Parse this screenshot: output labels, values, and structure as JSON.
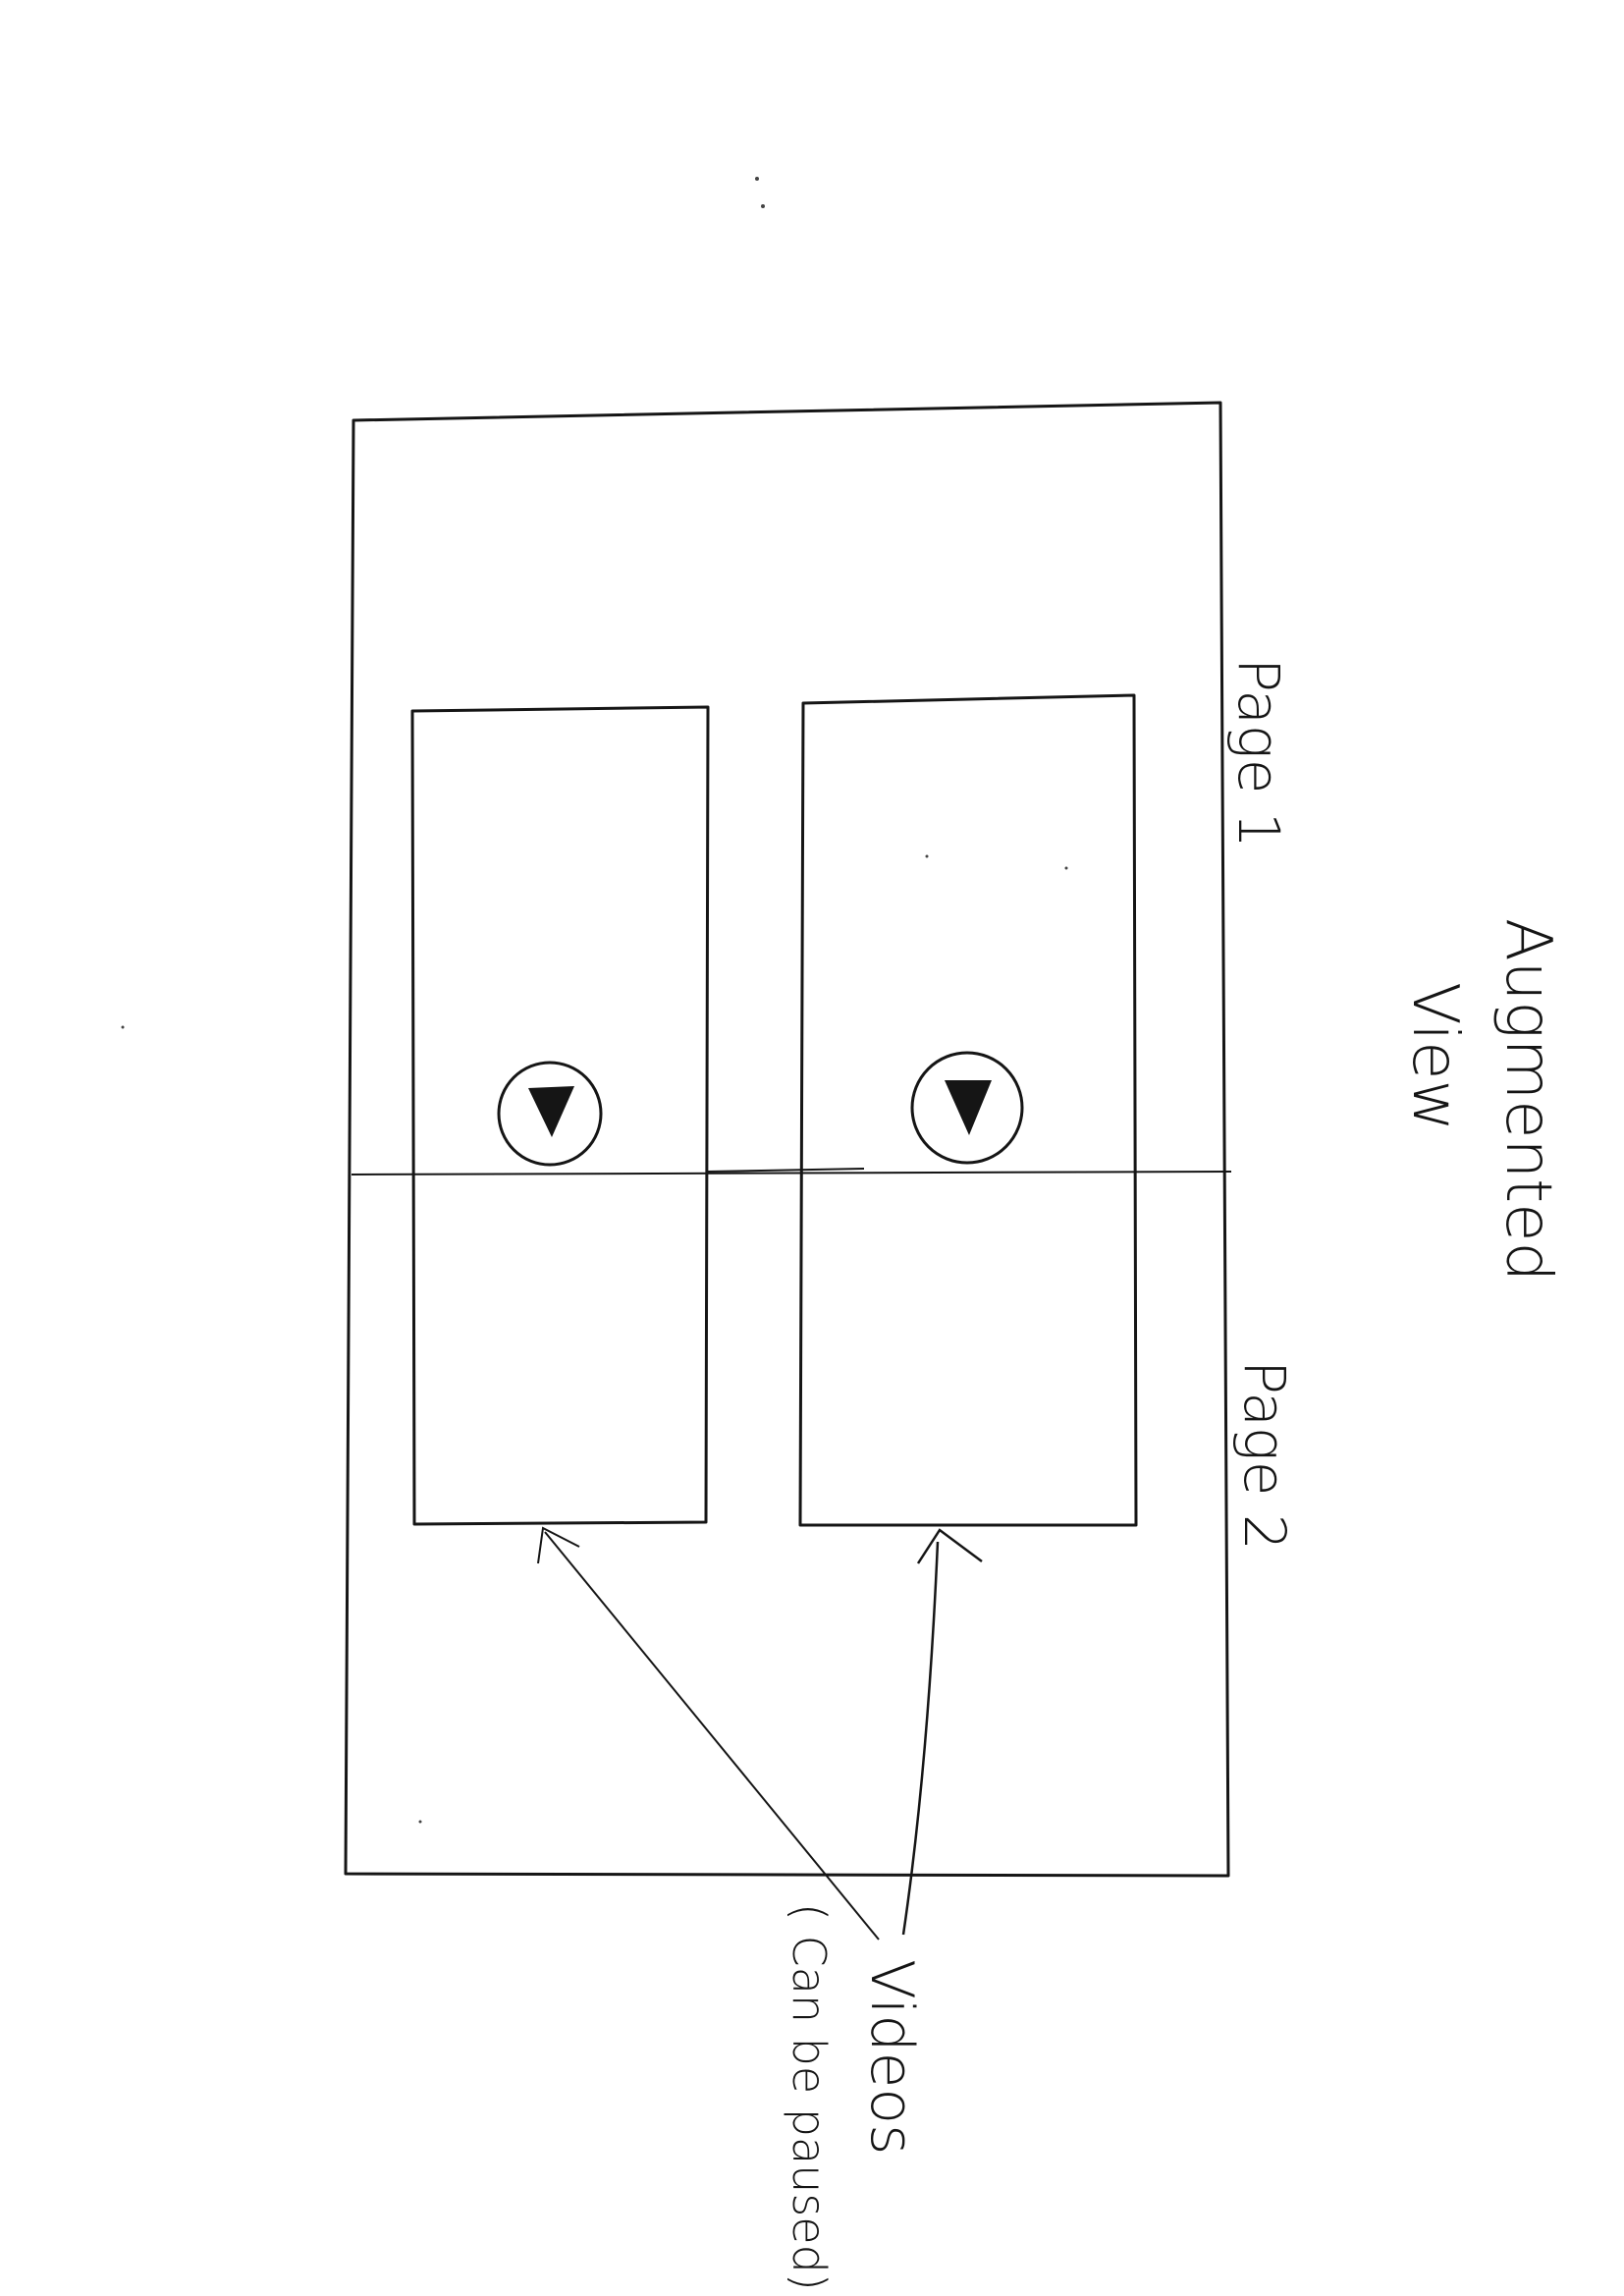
{
  "title": {
    "line1": "Augmented",
    "line2": "View"
  },
  "page_labels": {
    "page1": "Page 1",
    "page2": "Page 2"
  },
  "annotation": {
    "line1": "Videos",
    "line2": "( Can be paused)"
  },
  "videos": [
    {
      "name": "video-left",
      "state": "paused",
      "icon": "play-icon"
    },
    {
      "name": "video-right",
      "state": "paused",
      "icon": "play-icon"
    }
  ],
  "colors": {
    "ink": "#151515",
    "paper": "#ffffff"
  }
}
